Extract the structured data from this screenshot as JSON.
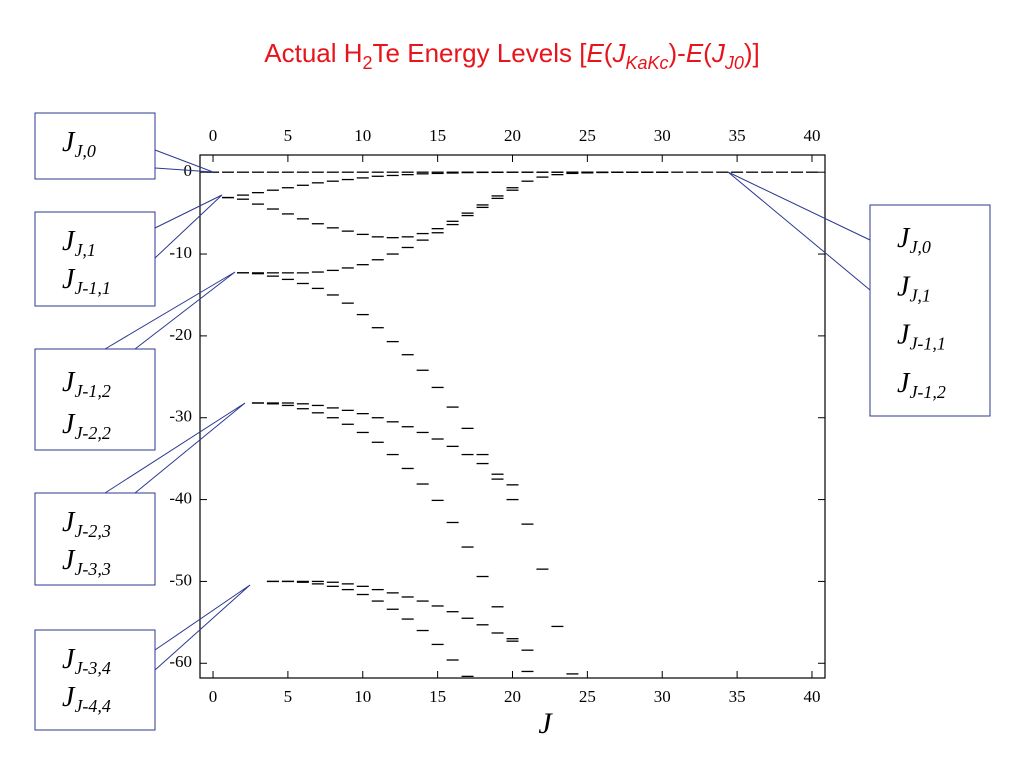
{
  "chart_data": {
    "type": "levels",
    "title_parts": [
      {
        "text": "Actual H"
      },
      {
        "text": "2",
        "style": "sub"
      },
      {
        "text": "Te Energy Levels ["
      },
      {
        "text": "E",
        "style": "italic"
      },
      {
        "text": "("
      },
      {
        "text": "J",
        "style": "italic"
      },
      {
        "text": "KaKc",
        "style": "italic-sub"
      },
      {
        "text": ")-"
      },
      {
        "text": "E",
        "style": "italic"
      },
      {
        "text": "("
      },
      {
        "text": "J",
        "style": "italic"
      },
      {
        "text": "J0",
        "style": "italic-sub"
      },
      {
        "text": ")]"
      }
    ],
    "title_color": "#e8141c",
    "x_label": "J",
    "xlim": [
      -0.87,
      40.87
    ],
    "xticks": [
      0,
      5,
      10,
      15,
      20,
      25,
      30,
      35,
      40
    ],
    "ylim": [
      -61.8,
      2.1
    ],
    "yticks": [
      0,
      -10,
      -20,
      -30,
      -40,
      -50,
      -60
    ],
    "color": "#000000",
    "series": [
      {
        "x": [
          0,
          1,
          2,
          3,
          4,
          5,
          6,
          7,
          8,
          9,
          10,
          11,
          12,
          13,
          14,
          15,
          16,
          17,
          18,
          19,
          20,
          21,
          22,
          23,
          24,
          25,
          26,
          27,
          28,
          29,
          30,
          31,
          32,
          33,
          34,
          35,
          36,
          37,
          38,
          39,
          40
        ],
        "values": [
          0,
          0,
          0,
          0,
          0,
          0,
          0,
          0,
          0,
          0,
          0,
          0,
          0,
          0,
          0,
          0,
          0,
          0,
          0,
          0,
          0,
          0,
          0,
          0,
          0,
          0,
          0,
          0,
          0,
          0,
          0,
          0,
          0,
          0,
          0,
          0,
          0,
          0,
          0,
          0,
          0
        ]
      },
      {
        "x": [
          1,
          2,
          3,
          4,
          5,
          6,
          7,
          8,
          9,
          10,
          11,
          12,
          13,
          14,
          15,
          16,
          17,
          18,
          19,
          20,
          21,
          22,
          23,
          24,
          25,
          26,
          27,
          28,
          29,
          30
        ],
        "values": [
          -3.1,
          -2.8,
          -2.5,
          -2.2,
          -1.9,
          -1.6,
          -1.3,
          -1.1,
          -0.9,
          -0.7,
          -0.5,
          -0.4,
          -0.3,
          -0.2,
          -0.15,
          -0.1,
          -0.05,
          -0.03,
          -0.02,
          0,
          0,
          0,
          0,
          0,
          0,
          0,
          0,
          0,
          0,
          0
        ]
      },
      {
        "x": [
          1,
          2,
          3,
          4,
          5,
          6,
          7,
          8,
          9,
          10,
          11,
          12,
          13,
          14,
          15,
          16,
          17,
          18,
          19,
          20,
          21,
          22,
          23,
          24,
          25,
          26,
          27,
          28,
          29,
          30
        ],
        "values": [
          -3.1,
          -3.3,
          -3.9,
          -4.5,
          -5.1,
          -5.7,
          -6.3,
          -6.8,
          -7.2,
          -7.6,
          -7.9,
          -8.0,
          -7.9,
          -7.5,
          -6.9,
          -6.0,
          -5.0,
          -4.0,
          -2.9,
          -1.9,
          -1.1,
          -0.6,
          -0.3,
          -0.15,
          -0.08,
          -0.04,
          -0.02,
          -0.01,
          0,
          0
        ]
      },
      {
        "x": [
          2,
          3,
          4,
          5,
          6,
          7,
          8,
          9,
          10,
          11,
          12,
          13,
          14,
          15,
          16,
          17,
          18,
          19,
          20
        ],
        "values": [
          -12.3,
          -12.3,
          -12.3,
          -12.3,
          -12.3,
          -12.2,
          -12.0,
          -11.7,
          -11.3,
          -10.7,
          -10.0,
          -9.2,
          -8.3,
          -7.4,
          -6.4,
          -5.3,
          -4.3,
          -3.2,
          -2.2
        ]
      },
      {
        "x": [
          2,
          3,
          4,
          5,
          6,
          7,
          8,
          9,
          10,
          11,
          12,
          13,
          14,
          15,
          16,
          17,
          18,
          19,
          20,
          21,
          22,
          23,
          24
        ],
        "values": [
          -12.3,
          -12.4,
          -12.7,
          -13.1,
          -13.6,
          -14.2,
          -15.0,
          -16.0,
          -17.4,
          -19.0,
          -20.7,
          -22.3,
          -24.2,
          -26.3,
          -28.7,
          -31.3,
          -34.5,
          -37.5,
          -40,
          -43,
          -48.5,
          -55.5,
          -61.3
        ]
      },
      {
        "x": [
          3,
          4,
          5,
          6,
          7,
          8,
          9,
          10,
          11,
          12,
          13,
          14,
          15,
          16,
          17,
          18,
          19,
          20
        ],
        "values": [
          -28.2,
          -28.2,
          -28.2,
          -28.3,
          -28.5,
          -28.8,
          -29.1,
          -29.5,
          -30,
          -30.5,
          -31.1,
          -31.8,
          -32.6,
          -33.5,
          -34.5,
          -35.6,
          -36.9,
          -38.2
        ]
      },
      {
        "x": [
          3,
          4,
          5,
          6,
          7,
          8,
          9,
          10,
          11,
          12,
          13,
          14,
          15,
          16,
          17,
          18,
          19,
          20,
          21
        ],
        "values": [
          -28.2,
          -28.3,
          -28.5,
          -28.9,
          -29.4,
          -30.0,
          -30.8,
          -31.8,
          -33.0,
          -34.5,
          -36.2,
          -38.1,
          -40.1,
          -42.8,
          -45.8,
          -49.4,
          -53.1,
          -57.0,
          -61.0
        ]
      },
      {
        "x": [
          4,
          5,
          6,
          7,
          8,
          9,
          10,
          11,
          12,
          13,
          14,
          15,
          16,
          17,
          18,
          19,
          20,
          21
        ],
        "values": [
          -50,
          -50,
          -50,
          -50,
          -50.1,
          -50.3,
          -50.6,
          -51,
          -51.4,
          -51.9,
          -52.4,
          -53,
          -53.7,
          -54.5,
          -55.3,
          -56.3,
          -57.3,
          -58.4
        ]
      },
      {
        "x": [
          4,
          5,
          6,
          7,
          8,
          9,
          10,
          11,
          12,
          13,
          14,
          15,
          16,
          17
        ],
        "values": [
          -50,
          -50,
          -50.1,
          -50.3,
          -50.6,
          -51,
          -51.6,
          -52.4,
          -53.4,
          -54.6,
          -56,
          -57.7,
          -59.6,
          -61.6
        ]
      }
    ],
    "annotations": [
      {
        "lines": [
          {
            "main": "J",
            "sub": "J,0"
          }
        ]
      },
      {
        "lines": [
          {
            "main": "J",
            "sub": "J,1"
          },
          {
            "main": "J",
            "sub": "J-1,1"
          }
        ]
      },
      {
        "lines": [
          {
            "main": "J",
            "sub": "J-1,2"
          },
          {
            "main": "J",
            "sub": "J-2,2"
          }
        ]
      },
      {
        "lines": [
          {
            "main": "J",
            "sub": "J-2,3"
          },
          {
            "main": "J",
            "sub": "J-3,3"
          }
        ]
      },
      {
        "lines": [
          {
            "main": "J",
            "sub": "J-3,4"
          },
          {
            "main": "J",
            "sub": "J-4,4"
          }
        ]
      },
      {
        "lines": [
          {
            "main": "J",
            "sub": "J,0"
          },
          {
            "main": "J",
            "sub": "J,1"
          },
          {
            "main": "J",
            "sub": "J-1,1"
          },
          {
            "main": "J",
            "sub": "J-1,2"
          }
        ]
      }
    ]
  }
}
